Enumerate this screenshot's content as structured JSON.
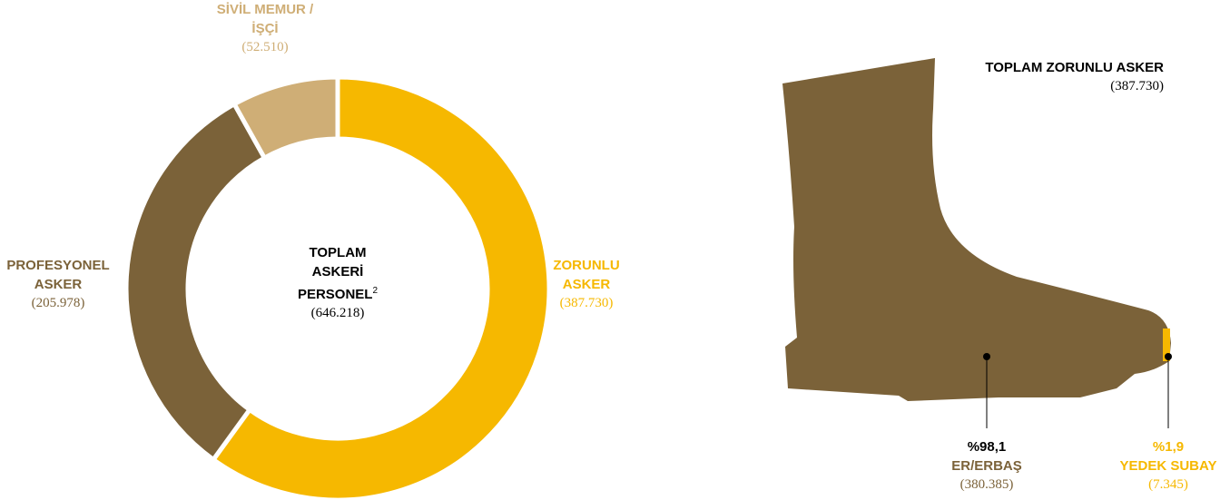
{
  "chart_data": {
    "type": "pie",
    "categories": [
      "ZORUNLU ASKER",
      "PROFESYONEL ASKER",
      "SİVİL MEMUR /İŞÇİ"
    ],
    "values": [
      387730,
      205978,
      52510
    ],
    "value_labels": [
      "(387.730)",
      "(205.978)",
      "(52.510)"
    ],
    "colors": [
      "#f6b800",
      "#7b6239",
      "#cfae76"
    ],
    "donut": true,
    "center_title": "TOPLAM ASKERİ PERSONEL",
    "center_note": "2",
    "center_value_label": "(646.218)"
  },
  "boot": {
    "title": "TOPLAM ZORUNLU ASKER",
    "title_value": "(387.730)",
    "parts": [
      {
        "percent": "%98,1",
        "label": "ER/ERBAŞ",
        "value": "(380.385)"
      },
      {
        "percent": "%1,9",
        "label": "YEDEK SUBAY",
        "value": "(7.345)"
      }
    ]
  }
}
